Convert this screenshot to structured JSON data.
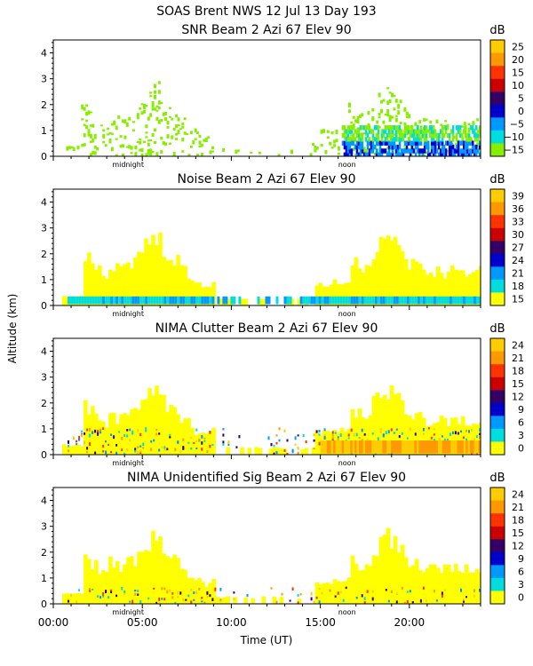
{
  "figure": {
    "title": "SOAS Brent NWS  12 Jul 13 Day 193",
    "xlabel": "Time (UT)",
    "ylabel": "Altitude (km)"
  },
  "chart_data": [
    {
      "type": "heatmap",
      "title": "SNR Beam 2 Azi  67 Elev 90",
      "colorbar_label": "dB",
      "colorbar_ticks": [
        "25",
        "20",
        "15",
        "10",
        "5",
        "0",
        "−5",
        "−10",
        "−15"
      ],
      "colors": [
        "#ffcc00",
        "#ff9900",
        "#ff3300",
        "#cc0000",
        "#330066",
        "#0000cc",
        "#0099ff",
        "#00dddd",
        "#88ee00"
      ],
      "x_range_hours": [
        0,
        24
      ],
      "y_range_km": [
        0,
        4.5
      ],
      "annotations": [
        "midnight",
        "noon"
      ]
    },
    {
      "type": "heatmap",
      "title": "Noise Beam 2 Azi  67 Elev 90",
      "colorbar_label": "dB",
      "colorbar_ticks": [
        "39",
        "36",
        "33",
        "30",
        "27",
        "24",
        "21",
        "18",
        "15"
      ],
      "colors": [
        "#ffcc00",
        "#ff9900",
        "#ff3300",
        "#cc0000",
        "#330066",
        "#0000cc",
        "#0099ff",
        "#00dddd",
        "#ffff00"
      ],
      "x_range_hours": [
        0,
        24
      ],
      "y_range_km": [
        0,
        4.5
      ],
      "annotations": [
        "midnight",
        "noon"
      ]
    },
    {
      "type": "heatmap",
      "title": "NIMA Clutter Beam 2 Azi  67 Elev 90",
      "colorbar_label": "dB",
      "colorbar_ticks": [
        "24",
        "21",
        "18",
        "15",
        "12",
        "9",
        "6",
        "3",
        "0"
      ],
      "colors": [
        "#ffcc00",
        "#ff9900",
        "#ff3300",
        "#cc0000",
        "#330066",
        "#0000cc",
        "#0099ff",
        "#00dddd",
        "#ffff00"
      ],
      "x_range_hours": [
        0,
        24
      ],
      "y_range_km": [
        0,
        4.5
      ],
      "annotations": [
        "midnight",
        "noon"
      ]
    },
    {
      "type": "heatmap",
      "title": "NIMA Unidentified Sig Beam 2 Azi  67 Elev 90",
      "colorbar_label": "dB",
      "colorbar_ticks": [
        "24",
        "21",
        "18",
        "15",
        "12",
        "9",
        "6",
        "3",
        "0"
      ],
      "colors": [
        "#ffcc00",
        "#ff9900",
        "#ff3300",
        "#cc0000",
        "#330066",
        "#0000cc",
        "#0099ff",
        "#00dddd",
        "#ffff00"
      ],
      "x_range_hours": [
        0,
        24
      ],
      "y_range_km": [
        0,
        4.5
      ],
      "annotations": [
        "midnight",
        "noon"
      ]
    }
  ],
  "axes": {
    "y_ticks": [
      "0",
      "1",
      "2",
      "3",
      "4"
    ],
    "x_ticks": [
      "00:00",
      "05:00",
      "10:00",
      "15:00",
      "20:00"
    ]
  }
}
